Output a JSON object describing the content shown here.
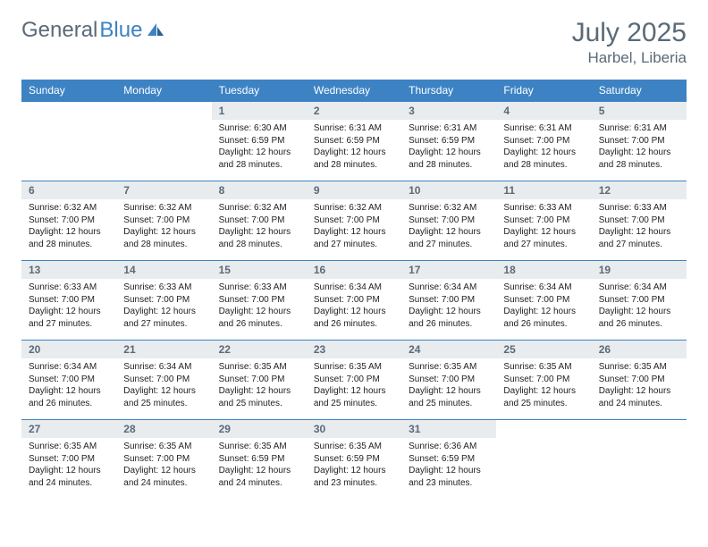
{
  "logo": {
    "general": "General",
    "blue": "Blue"
  },
  "header": {
    "title": "July 2025",
    "location": "Harbel, Liberia"
  },
  "columns": [
    "Sunday",
    "Monday",
    "Tuesday",
    "Wednesday",
    "Thursday",
    "Friday",
    "Saturday"
  ],
  "colors": {
    "header_bar": "#3d83c4",
    "header_text": "#ffffff",
    "daynum_bg": "#e9ecef",
    "title_text": "#5a6a78",
    "row_border": "#3d83c4",
    "body_text": "#222222",
    "page_bg": "#ffffff"
  },
  "weeks": [
    [
      {
        "n": "",
        "sr": "",
        "ss": "",
        "dl": ""
      },
      {
        "n": "",
        "sr": "",
        "ss": "",
        "dl": ""
      },
      {
        "n": "1",
        "sr": "Sunrise: 6:30 AM",
        "ss": "Sunset: 6:59 PM",
        "dl": "Daylight: 12 hours and 28 minutes."
      },
      {
        "n": "2",
        "sr": "Sunrise: 6:31 AM",
        "ss": "Sunset: 6:59 PM",
        "dl": "Daylight: 12 hours and 28 minutes."
      },
      {
        "n": "3",
        "sr": "Sunrise: 6:31 AM",
        "ss": "Sunset: 6:59 PM",
        "dl": "Daylight: 12 hours and 28 minutes."
      },
      {
        "n": "4",
        "sr": "Sunrise: 6:31 AM",
        "ss": "Sunset: 7:00 PM",
        "dl": "Daylight: 12 hours and 28 minutes."
      },
      {
        "n": "5",
        "sr": "Sunrise: 6:31 AM",
        "ss": "Sunset: 7:00 PM",
        "dl": "Daylight: 12 hours and 28 minutes."
      }
    ],
    [
      {
        "n": "6",
        "sr": "Sunrise: 6:32 AM",
        "ss": "Sunset: 7:00 PM",
        "dl": "Daylight: 12 hours and 28 minutes."
      },
      {
        "n": "7",
        "sr": "Sunrise: 6:32 AM",
        "ss": "Sunset: 7:00 PM",
        "dl": "Daylight: 12 hours and 28 minutes."
      },
      {
        "n": "8",
        "sr": "Sunrise: 6:32 AM",
        "ss": "Sunset: 7:00 PM",
        "dl": "Daylight: 12 hours and 28 minutes."
      },
      {
        "n": "9",
        "sr": "Sunrise: 6:32 AM",
        "ss": "Sunset: 7:00 PM",
        "dl": "Daylight: 12 hours and 27 minutes."
      },
      {
        "n": "10",
        "sr": "Sunrise: 6:32 AM",
        "ss": "Sunset: 7:00 PM",
        "dl": "Daylight: 12 hours and 27 minutes."
      },
      {
        "n": "11",
        "sr": "Sunrise: 6:33 AM",
        "ss": "Sunset: 7:00 PM",
        "dl": "Daylight: 12 hours and 27 minutes."
      },
      {
        "n": "12",
        "sr": "Sunrise: 6:33 AM",
        "ss": "Sunset: 7:00 PM",
        "dl": "Daylight: 12 hours and 27 minutes."
      }
    ],
    [
      {
        "n": "13",
        "sr": "Sunrise: 6:33 AM",
        "ss": "Sunset: 7:00 PM",
        "dl": "Daylight: 12 hours and 27 minutes."
      },
      {
        "n": "14",
        "sr": "Sunrise: 6:33 AM",
        "ss": "Sunset: 7:00 PM",
        "dl": "Daylight: 12 hours and 27 minutes."
      },
      {
        "n": "15",
        "sr": "Sunrise: 6:33 AM",
        "ss": "Sunset: 7:00 PM",
        "dl": "Daylight: 12 hours and 26 minutes."
      },
      {
        "n": "16",
        "sr": "Sunrise: 6:34 AM",
        "ss": "Sunset: 7:00 PM",
        "dl": "Daylight: 12 hours and 26 minutes."
      },
      {
        "n": "17",
        "sr": "Sunrise: 6:34 AM",
        "ss": "Sunset: 7:00 PM",
        "dl": "Daylight: 12 hours and 26 minutes."
      },
      {
        "n": "18",
        "sr": "Sunrise: 6:34 AM",
        "ss": "Sunset: 7:00 PM",
        "dl": "Daylight: 12 hours and 26 minutes."
      },
      {
        "n": "19",
        "sr": "Sunrise: 6:34 AM",
        "ss": "Sunset: 7:00 PM",
        "dl": "Daylight: 12 hours and 26 minutes."
      }
    ],
    [
      {
        "n": "20",
        "sr": "Sunrise: 6:34 AM",
        "ss": "Sunset: 7:00 PM",
        "dl": "Daylight: 12 hours and 26 minutes."
      },
      {
        "n": "21",
        "sr": "Sunrise: 6:34 AM",
        "ss": "Sunset: 7:00 PM",
        "dl": "Daylight: 12 hours and 25 minutes."
      },
      {
        "n": "22",
        "sr": "Sunrise: 6:35 AM",
        "ss": "Sunset: 7:00 PM",
        "dl": "Daylight: 12 hours and 25 minutes."
      },
      {
        "n": "23",
        "sr": "Sunrise: 6:35 AM",
        "ss": "Sunset: 7:00 PM",
        "dl": "Daylight: 12 hours and 25 minutes."
      },
      {
        "n": "24",
        "sr": "Sunrise: 6:35 AM",
        "ss": "Sunset: 7:00 PM",
        "dl": "Daylight: 12 hours and 25 minutes."
      },
      {
        "n": "25",
        "sr": "Sunrise: 6:35 AM",
        "ss": "Sunset: 7:00 PM",
        "dl": "Daylight: 12 hours and 25 minutes."
      },
      {
        "n": "26",
        "sr": "Sunrise: 6:35 AM",
        "ss": "Sunset: 7:00 PM",
        "dl": "Daylight: 12 hours and 24 minutes."
      }
    ],
    [
      {
        "n": "27",
        "sr": "Sunrise: 6:35 AM",
        "ss": "Sunset: 7:00 PM",
        "dl": "Daylight: 12 hours and 24 minutes."
      },
      {
        "n": "28",
        "sr": "Sunrise: 6:35 AM",
        "ss": "Sunset: 7:00 PM",
        "dl": "Daylight: 12 hours and 24 minutes."
      },
      {
        "n": "29",
        "sr": "Sunrise: 6:35 AM",
        "ss": "Sunset: 6:59 PM",
        "dl": "Daylight: 12 hours and 24 minutes."
      },
      {
        "n": "30",
        "sr": "Sunrise: 6:35 AM",
        "ss": "Sunset: 6:59 PM",
        "dl": "Daylight: 12 hours and 23 minutes."
      },
      {
        "n": "31",
        "sr": "Sunrise: 6:36 AM",
        "ss": "Sunset: 6:59 PM",
        "dl": "Daylight: 12 hours and 23 minutes."
      },
      {
        "n": "",
        "sr": "",
        "ss": "",
        "dl": ""
      },
      {
        "n": "",
        "sr": "",
        "ss": "",
        "dl": ""
      }
    ]
  ]
}
